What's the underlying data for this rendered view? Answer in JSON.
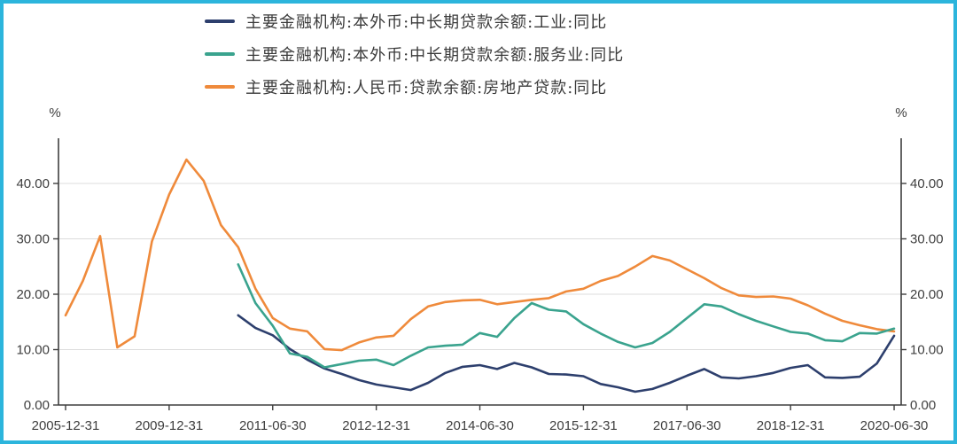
{
  "frame": {
    "border_color": "#2cb5dc",
    "background": "#ffffff"
  },
  "chart_data": {
    "type": "line",
    "title": "",
    "y_axis_unit": "%",
    "y_ticks": [
      0,
      10,
      20,
      30,
      40
    ],
    "y_tick_labels": [
      "0.00",
      "10.00",
      "20.00",
      "30.00",
      "40.00"
    ],
    "ylim": [
      0,
      48
    ],
    "grid": true,
    "legend_position": "top",
    "x_labels": [
      "2005-12-31",
      "2009-12-31",
      "2011-06-30",
      "2012-12-31",
      "2014-06-30",
      "2015-12-31",
      "2017-06-30",
      "2018-12-31",
      "2020-06-30"
    ],
    "x_label_indices": [
      0,
      6,
      12,
      18,
      24,
      30,
      36,
      42,
      48
    ],
    "n_points": 49,
    "draw_order": [
      2,
      0,
      1
    ],
    "series": [
      {
        "key": "industrial-mlt-loans",
        "name": "主要金融机构:本外币:中长期贷款余额:工业:同比",
        "color": "#2d3f6d",
        "start_index": 10,
        "values": [
          16.2,
          13.9,
          12.6,
          10.1,
          8.2,
          6.6,
          5.6,
          4.5,
          3.7,
          3.2,
          2.7,
          4.0,
          5.8,
          6.9,
          7.2,
          6.5,
          7.6,
          6.8,
          5.6,
          5.5,
          5.2,
          3.8,
          3.2,
          2.4,
          2.9,
          4.0,
          5.3,
          6.5,
          5.0,
          4.8,
          5.2,
          5.8,
          6.7,
          7.2,
          5.0,
          4.9,
          5.1,
          7.5,
          12.5
        ]
      },
      {
        "key": "services-mlt-loans",
        "name": "主要金融机构:本外币:中长期贷款余额:服务业:同比",
        "color": "#3aa38e",
        "start_index": 10,
        "values": [
          25.4,
          18.4,
          14.3,
          9.3,
          8.7,
          6.8,
          7.4,
          8.0,
          8.2,
          7.2,
          8.9,
          10.4,
          10.7,
          10.9,
          13.0,
          12.3,
          15.7,
          18.4,
          17.2,
          16.9,
          14.6,
          12.9,
          11.4,
          10.4,
          11.2,
          13.2,
          15.7,
          18.2,
          17.8,
          16.4,
          15.2,
          14.2,
          13.2,
          12.9,
          11.7,
          11.5,
          13.0,
          12.9,
          13.8
        ]
      },
      {
        "key": "real-estate-loans",
        "name": "主要金融机构:人民币:贷款余额:房地产贷款:同比",
        "color": "#ef8a3b",
        "start_index": 0,
        "values": [
          16.2,
          22.4,
          30.5,
          10.4,
          12.4,
          29.5,
          38.0,
          44.3,
          40.5,
          32.5,
          28.5,
          21.0,
          15.7,
          13.8,
          13.3,
          10.1,
          9.9,
          11.3,
          12.2,
          12.5,
          15.5,
          17.8,
          18.6,
          18.9,
          19.0,
          18.2,
          18.6,
          19.0,
          19.3,
          20.5,
          21.0,
          22.4,
          23.3,
          25.0,
          26.9,
          26.1,
          24.5,
          22.9,
          21.1,
          19.8,
          19.5,
          19.6,
          19.2,
          18.0,
          16.5,
          15.2,
          14.4,
          13.7,
          13.3
        ]
      }
    ],
    "style": {
      "axis_color": "#3e3e3e",
      "grid_color": "#dcdcdc",
      "tick_label_color": "#3e3e3e",
      "line_width": 2.6
    }
  }
}
